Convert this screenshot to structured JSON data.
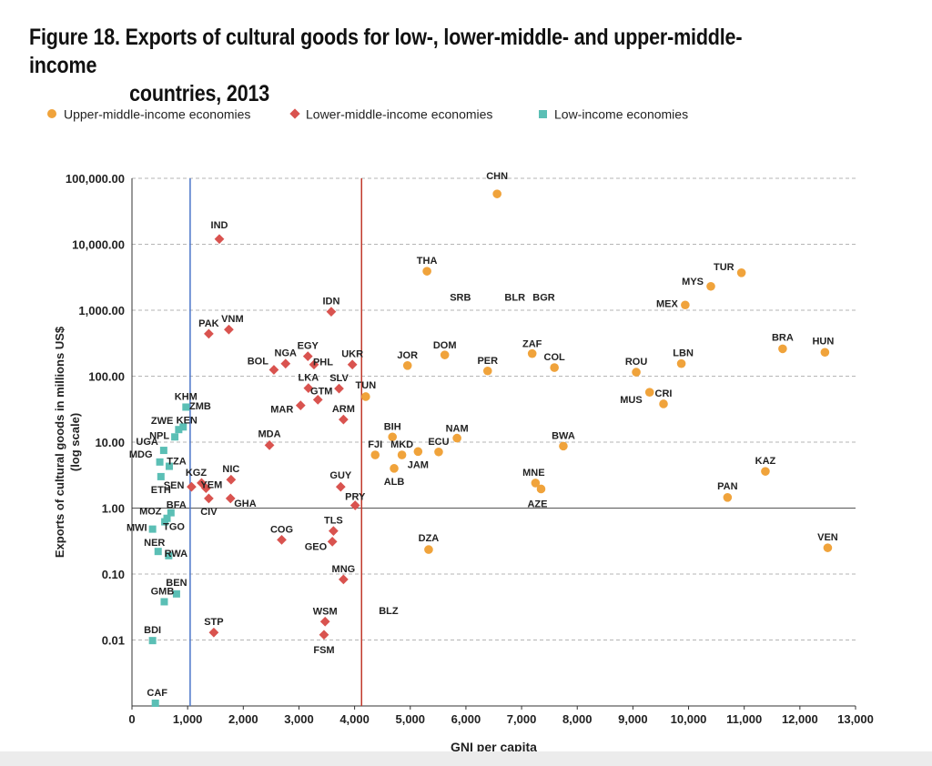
{
  "title_line1": "Figure 18. Exports of cultural goods for low-, lower-middle- and upper-middle-income",
  "title_line2": "countries, 2013",
  "legend": [
    {
      "label": "Upper-middle-income economies",
      "marker": "circle",
      "color": "#f0a33b"
    },
    {
      "label": "Lower-middle-income economies",
      "marker": "diamond",
      "color": "#d9534f"
    },
    {
      "label": "Low-income economies",
      "marker": "square",
      "color": "#5bbfb5"
    }
  ],
  "chart_data": {
    "type": "scatter",
    "title": "Figure 18. Exports of cultural goods for low-, lower-middle- and upper-middle-income countries, 2013",
    "xlabel": "GNI per capita",
    "ylabel": "Exports of cultural goods in millions US$",
    "ylabel2": "(log scale)",
    "yscale": "log",
    "xlim": [
      0,
      13000
    ],
    "ylim": [
      0.001,
      100000
    ],
    "x_ticks": [
      0,
      1000,
      2000,
      3000,
      4000,
      5000,
      6000,
      7000,
      8000,
      9000,
      10000,
      11000,
      12000,
      13000
    ],
    "x_tick_labels": [
      "0",
      "1,000",
      "2,000",
      "3,000",
      "4,000",
      "5,000",
      "6,000",
      "7,000",
      "8,000",
      "9,000",
      "10,000",
      "11,000",
      "12,000",
      "13,000"
    ],
    "y_ticks": [
      0.01,
      0.1,
      1,
      10,
      100,
      1000,
      10000,
      100000
    ],
    "y_tick_labels": [
      "0.01",
      "0.10",
      "1.00",
      "10.00",
      "100.00",
      "1,000.00",
      "10,000.00",
      "100,000.00"
    ],
    "reference_lines": [
      {
        "x": 1045,
        "color": "#4a74c9",
        "meaning": "low / lower-middle income threshold"
      },
      {
        "x": 4125,
        "color": "#c0392b",
        "meaning": "lower-middle / upper-middle income threshold"
      }
    ],
    "grid": "horizontal dashed",
    "legend_position": "top",
    "series": [
      {
        "name": "Upper-middle-income economies",
        "marker": "circle",
        "color": "#f0a33b",
        "points": [
          {
            "label": "CHN",
            "x": 6560,
            "y": 58000
          },
          {
            "label": "THA",
            "x": 5300,
            "y": 3900
          },
          {
            "label": "TUR",
            "x": 10950,
            "y": 3700
          },
          {
            "label": "MYS",
            "x": 10400,
            "y": 2300
          },
          {
            "label": "MEX",
            "x": 9940,
            "y": 1200
          },
          {
            "label": "BRA",
            "x": 11690,
            "y": 260
          },
          {
            "label": "HUN",
            "x": 12450,
            "y": 230
          },
          {
            "label": "ZAF",
            "x": 7190,
            "y": 220
          },
          {
            "label": "DOM",
            "x": 5620,
            "y": 210
          },
          {
            "label": "LBN",
            "x": 9870,
            "y": 155
          },
          {
            "label": "JOR",
            "x": 4950,
            "y": 145
          },
          {
            "label": "COL",
            "x": 7590,
            "y": 135
          },
          {
            "label": "PER",
            "x": 6390,
            "y": 120
          },
          {
            "label": "ROU",
            "x": 9060,
            "y": 115
          },
          {
            "label": "MUS",
            "x": 9300,
            "y": 57
          },
          {
            "label": "TUN",
            "x": 4200,
            "y": 49
          },
          {
            "label": "CRI",
            "x": 9550,
            "y": 38
          },
          {
            "label": "NAM",
            "x": 5840,
            "y": 11.5
          },
          {
            "label": "BIH",
            "x": 4680,
            "y": 12
          },
          {
            "label": "BWA",
            "x": 7750,
            "y": 8.7
          },
          {
            "label": "ECU",
            "x": 5510,
            "y": 7.1
          },
          {
            "label": "JAM",
            "x": 5140,
            "y": 7.2
          },
          {
            "label": "MKD",
            "x": 4850,
            "y": 6.4
          },
          {
            "label": "FJI",
            "x": 4370,
            "y": 6.4
          },
          {
            "label": "ALB",
            "x": 4710,
            "y": 4.0
          },
          {
            "label": "KAZ",
            "x": 11380,
            "y": 3.6
          },
          {
            "label": "MNE",
            "x": 7250,
            "y": 2.4
          },
          {
            "label": "AZE",
            "x": 7350,
            "y": 1.95
          },
          {
            "label": "PAN",
            "x": 10700,
            "y": 1.45
          },
          {
            "label": "VEN",
            "x": 12500,
            "y": 0.25
          },
          {
            "label": "DZA",
            "x": 5330,
            "y": 0.235
          },
          {
            "label": "SRB",
            "x": 5900,
            "y": null,
            "label_only": true
          },
          {
            "label": "BLR",
            "x": 6880,
            "y": null,
            "label_only": true
          },
          {
            "label": "BGR",
            "x": 7400,
            "y": null,
            "label_only": true
          },
          {
            "label": "BLZ",
            "x": 4610,
            "y": null,
            "label_only": true
          }
        ]
      },
      {
        "name": "Lower-middle-income economies",
        "marker": "diamond",
        "color": "#d9534f",
        "points": [
          {
            "label": "IND",
            "x": 1570,
            "y": 12000
          },
          {
            "label": "IDN",
            "x": 3580,
            "y": 950
          },
          {
            "label": "VNM",
            "x": 1740,
            "y": 510
          },
          {
            "label": "PAK",
            "x": 1380,
            "y": 440
          },
          {
            "label": "EGY",
            "x": 3160,
            "y": 200
          },
          {
            "label": "NGA",
            "x": 2760,
            "y": 155
          },
          {
            "label": "PHL",
            "x": 3270,
            "y": 150
          },
          {
            "label": "UKR",
            "x": 3960,
            "y": 150
          },
          {
            "label": "BOL",
            "x": 2550,
            "y": 125
          },
          {
            "label": "LKA",
            "x": 3170,
            "y": 66
          },
          {
            "label": "SLV",
            "x": 3720,
            "y": 65
          },
          {
            "label": "GTM",
            "x": 3340,
            "y": 44
          },
          {
            "label": "MAR",
            "x": 3030,
            "y": 36
          },
          {
            "label": "ARM",
            "x": 3800,
            "y": 22
          },
          {
            "label": "MDA",
            "x": 2470,
            "y": 9.0
          },
          {
            "label": "NIC",
            "x": 1780,
            "y": 2.7
          },
          {
            "label": "KGZ",
            "x": 1250,
            "y": 2.4
          },
          {
            "label": "SEN",
            "x": 1070,
            "y": 2.1
          },
          {
            "label": "YEM",
            "x": 1330,
            "y": 2.0
          },
          {
            "label": "GUY",
            "x": 3750,
            "y": 2.1
          },
          {
            "label": "CIV",
            "x": 1380,
            "y": 1.4
          },
          {
            "label": "GHA",
            "x": 1770,
            "y": 1.4
          },
          {
            "label": "PRY",
            "x": 4010,
            "y": 1.1
          },
          {
            "label": "TLS",
            "x": 3620,
            "y": 0.45
          },
          {
            "label": "COG",
            "x": 2690,
            "y": 0.33
          },
          {
            "label": "GEO",
            "x": 3600,
            "y": 0.31
          },
          {
            "label": "MNG",
            "x": 3800,
            "y": 0.083
          },
          {
            "label": "WSM",
            "x": 3470,
            "y": 0.019
          },
          {
            "label": "FSM",
            "x": 3450,
            "y": 0.012
          },
          {
            "label": "STP",
            "x": 1470,
            "y": 0.013
          }
        ]
      },
      {
        "name": "Low-income economies",
        "marker": "square",
        "color": "#5bbfb5",
        "points": [
          {
            "label": "KHM",
            "x": 970,
            "y": 34
          },
          {
            "label": "ZMB",
            "x": 1030,
            "y": null,
            "label_only": true
          },
          {
            "label": "KEN",
            "x": 920,
            "y": 17
          },
          {
            "label": "ZWE",
            "x": 840,
            "y": 15.5
          },
          {
            "label": "NPL",
            "x": 770,
            "y": 12
          },
          {
            "label": "UGA",
            "x": 570,
            "y": 7.5
          },
          {
            "label": "MDG",
            "x": 500,
            "y": 5.0
          },
          {
            "label": "TZA",
            "x": 670,
            "y": 4.3
          },
          {
            "label": "ETH",
            "x": 520,
            "y": 3.0
          },
          {
            "label": "BFA",
            "x": 700,
            "y": 0.85
          },
          {
            "label": "MOZ",
            "x": 630,
            "y": 0.7
          },
          {
            "label": "TGO",
            "x": 590,
            "y": 0.62
          },
          {
            "label": "MWI",
            "x": 370,
            "y": 0.48
          },
          {
            "label": "NER",
            "x": 470,
            "y": 0.22
          },
          {
            "label": "RWA",
            "x": 660,
            "y": 0.19
          },
          {
            "label": "BEN",
            "x": 800,
            "y": 0.05
          },
          {
            "label": "GMB",
            "x": 580,
            "y": 0.038
          },
          {
            "label": "BDI",
            "x": 370,
            "y": 0.0098
          },
          {
            "label": "CAF",
            "x": 420,
            "y": 0.0011
          }
        ]
      }
    ]
  }
}
